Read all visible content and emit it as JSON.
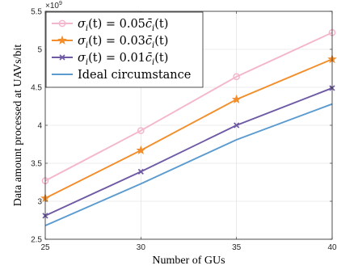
{
  "chart_data": {
    "type": "line",
    "xlabel": "Number of GUs",
    "ylabel": "Data amount processed at UAVs/bit",
    "y_exponent_label": "×10",
    "y_exponent_power": "9",
    "x": [
      25,
      30,
      35,
      40
    ],
    "x_ticks": [
      "25",
      "30",
      "35",
      "40"
    ],
    "y_ticks": [
      "2.5",
      "3",
      "3.5",
      "4",
      "4.5",
      "5",
      "5.5"
    ],
    "xlim": [
      25,
      40
    ],
    "ylim": [
      2500000000.0,
      5500000000.0
    ],
    "grid": true,
    "legend_position": "top-left",
    "series": [
      {
        "name": "σi(t) = 0.05c̄i(t)",
        "name_parts": [
          "σ",
          "i",
          "(t) = 0.05",
          "c̄",
          "i",
          "(t)"
        ],
        "values": [
          3270000000.0,
          3930000000.0,
          4640000000.0,
          5220000000.0
        ],
        "color": "#f4b6cc",
        "marker": "circle"
      },
      {
        "name": "σi(t) = 0.03c̄i(t)",
        "name_parts": [
          "σ",
          "i",
          "(t) = 0.03",
          "c̄",
          "i",
          "(t)"
        ],
        "values": [
          3040000000.0,
          3670000000.0,
          4340000000.0,
          4870000000.0
        ],
        "color": "#f28e2b",
        "marker": "star"
      },
      {
        "name": "σi(t) = 0.01c̄i(t)",
        "name_parts": [
          "σ",
          "i",
          "(t) = 0.01",
          "c̄",
          "i",
          "(t)"
        ],
        "values": [
          2810000000.0,
          3390000000.0,
          4000000000.0,
          4490000000.0
        ],
        "color": "#6e5aa4",
        "marker": "x"
      },
      {
        "name": "Ideal circumstance",
        "values": [
          2680000000.0,
          3230000000.0,
          3810000000.0,
          4280000000.0
        ],
        "color": "#5b9bcf",
        "marker": "none"
      }
    ]
  }
}
